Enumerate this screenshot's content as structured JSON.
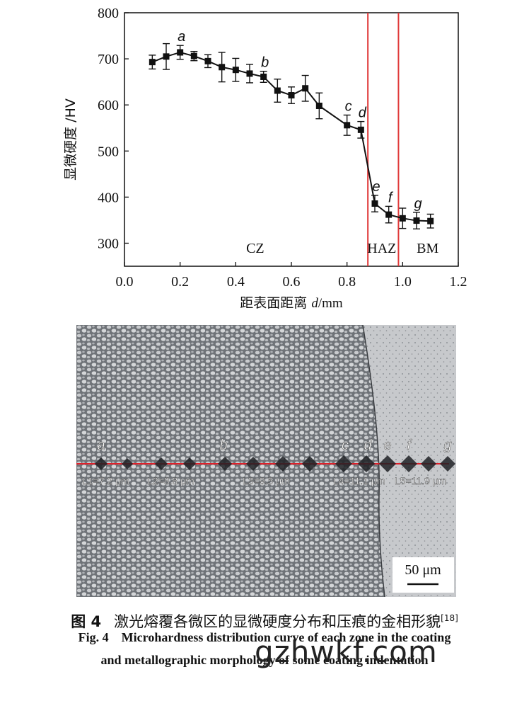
{
  "chart_data": {
    "type": "line",
    "ylabel": "显微硬度 /HV",
    "xlabel_prefix": "距表面距离 ",
    "xlabel_var": "d",
    "xlabel_unit": "/mm",
    "xlim": [
      0.0,
      1.2
    ],
    "ylim": [
      250,
      800
    ],
    "xticks": [
      "0.0",
      "0.2",
      "0.4",
      "0.6",
      "0.8",
      "1.0",
      "1.2"
    ],
    "yticks": [
      "300",
      "400",
      "500",
      "600",
      "700",
      "800"
    ],
    "series": [
      {
        "x": [
          0.1,
          0.15,
          0.2,
          0.25,
          0.3,
          0.35,
          0.4,
          0.45,
          0.5,
          0.55,
          0.6,
          0.65,
          0.7,
          0.8,
          0.85,
          0.9,
          0.95,
          1.0,
          1.05,
          1.1
        ],
        "y": [
          693,
          705,
          714,
          706,
          695,
          682,
          676,
          668,
          661,
          631,
          621,
          636,
          598,
          556,
          546,
          386,
          362,
          354,
          349,
          348
        ],
        "err": [
          15,
          28,
          15,
          10,
          14,
          32,
          25,
          20,
          12,
          25,
          18,
          28,
          28,
          22,
          18,
          18,
          18,
          22,
          18,
          15
        ]
      }
    ],
    "point_labels": [
      {
        "text": "a",
        "x": 0.2
      },
      {
        "text": "b",
        "x": 0.5
      },
      {
        "text": "c",
        "x": 0.8
      },
      {
        "text": "d",
        "x": 0.85
      },
      {
        "text": "e",
        "x": 0.9
      },
      {
        "text": "f",
        "x": 0.95
      },
      {
        "text": "g",
        "x": 1.05
      }
    ],
    "zone_lines": [
      0.875,
      0.985
    ],
    "zone_labels": [
      {
        "text": "CZ",
        "x": 0.47
      },
      {
        "text": "HAZ",
        "x": 0.925
      },
      {
        "text": "BM",
        "x": 1.09
      }
    ],
    "colors": {
      "line": "#111111",
      "zone_line": "#e03a3a"
    }
  },
  "micrograph": {
    "labels": [
      "a",
      "b",
      "c",
      "d",
      "e",
      "f",
      "g"
    ],
    "lengths": [
      "L1=7.2 μm",
      "L2=8.8 μm",
      "L3=9.5 μm",
      "L4=11.1 μm",
      "L5=11.9 μm"
    ],
    "scale_bar": "50 μm",
    "line_color": "#e0202a"
  },
  "caption": {
    "zh_fig": "图 4",
    "zh_text": "激光熔覆各微区的显微硬度分布和压痕的金相形貌",
    "zh_ref": "[18]",
    "en_fig": "Fig. 4",
    "en_line1": "Microhardness distribution curve of each zone in the coating",
    "en_line2": "and metallographic morphology of some coating indentation"
  },
  "watermark": "gzhwkf.com"
}
